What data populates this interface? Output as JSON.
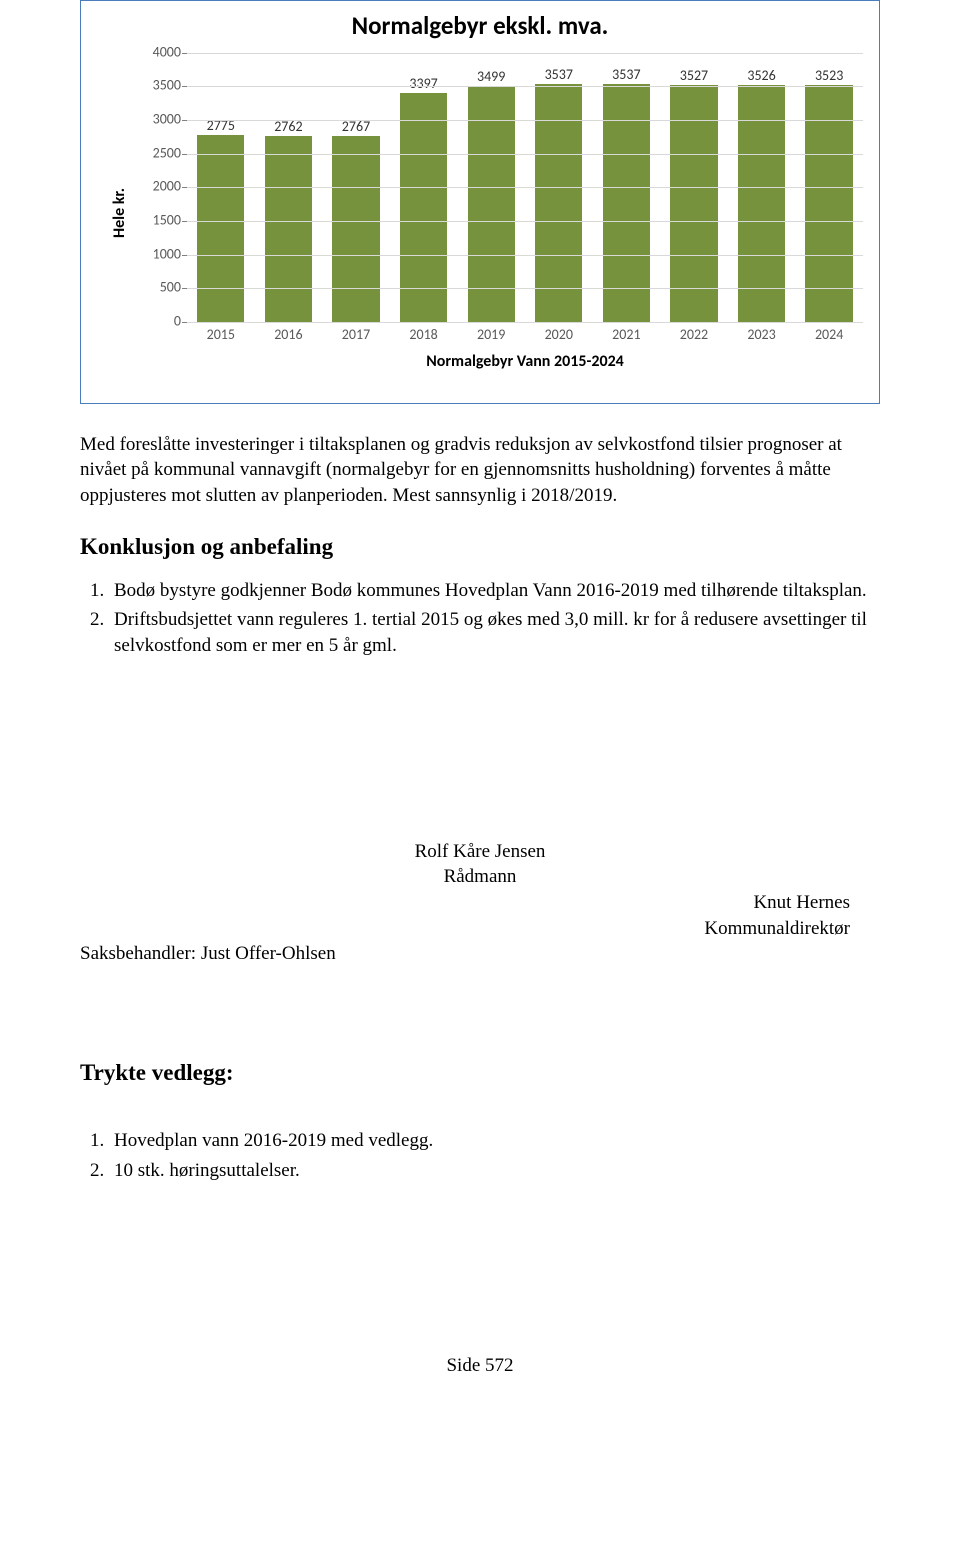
{
  "chart": {
    "type": "bar",
    "title": "Normalgebyr ekskl. mva.",
    "title_fontsize": 25,
    "y_axis_label": "Hele kr.",
    "y_label_fontsize": 16,
    "x_axis_label": "Normalgebyr Vann 2015-2024",
    "x_label_fontsize": 16,
    "ylim": [
      0,
      4000
    ],
    "ytick_step": 500,
    "yticks": [
      0,
      500,
      1000,
      1500,
      2000,
      2500,
      3000,
      3500,
      4000
    ],
    "categories": [
      "2015",
      "2016",
      "2017",
      "2018",
      "2019",
      "2020",
      "2021",
      "2022",
      "2023",
      "2024"
    ],
    "values": [
      2775,
      2762,
      2767,
      3397,
      3499,
      3537,
      3537,
      3527,
      3526,
      3523
    ],
    "bar_color": "#76923c",
    "background_color": "#ffffff",
    "grid_color": "#d9d9d9",
    "border_color": "#4a7dbb",
    "bar_width": 0.7,
    "value_label_fontsize": 14,
    "tick_label_fontsize": 14,
    "tick_label_color": "#595959"
  },
  "body": {
    "para1": "Med foreslåtte investeringer i tiltaksplanen og gradvis reduksjon av selvkostfond tilsier prognoser at nivået på kommunal vannavgift (normalgebyr for en gjennomsnitts husholdning) forventes å måtte oppjusteres mot slutten av planperioden. Mest sannsynlig i 2018/2019.",
    "conclusion_heading": "Konklusjon og anbefaling",
    "list": [
      "Bodø bystyre godkjenner Bodø kommunes Hovedplan Vann 2016-2019 med tilhørende tiltaksplan.",
      "Driftsbudsjettet vann reguleres 1. tertial 2015 og økes med 3,0 mill. kr for å redusere avsettinger til selvkostfond som er mer en 5 år gml."
    ],
    "signatures": {
      "name1": "Rolf Kåre Jensen",
      "title1": "Rådmann",
      "name2": "Knut Hernes",
      "title2": "Kommunaldirektør",
      "handler_label": "Saksbehandler: Just Offer-Ohlsen"
    },
    "attachments_heading": "Trykte vedlegg:",
    "attachments": [
      "Hovedplan vann 2016-2019 med vedlegg.",
      "10 stk. høringsuttalelser."
    ],
    "footer": "Side 572"
  }
}
